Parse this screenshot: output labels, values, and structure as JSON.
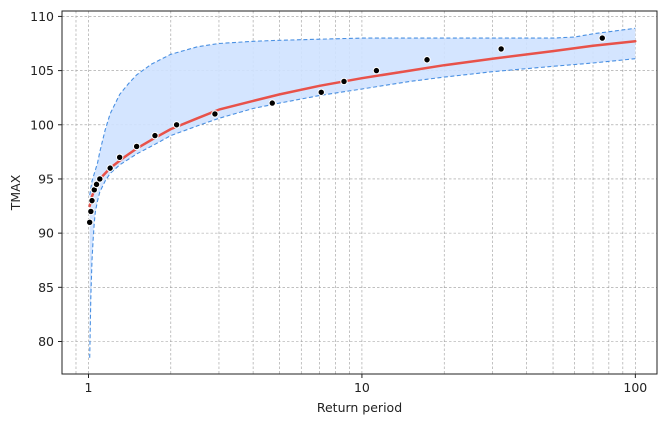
{
  "chart_data": {
    "type": "line",
    "title": "",
    "xlabel": "Return period",
    "ylabel": "TMAX",
    "x_scale": "log",
    "xlim": [
      0.8,
      120
    ],
    "ylim": [
      77,
      110.5
    ],
    "x_ticks": [
      1,
      10,
      100
    ],
    "x_tick_labels": [
      "1",
      "10",
      "100"
    ],
    "y_ticks": [
      80,
      85,
      90,
      95,
      100,
      105,
      110
    ],
    "y_tick_labels": [
      "80",
      "85",
      "90",
      "95",
      "100",
      "105",
      "110"
    ],
    "grid": true,
    "legend": "none",
    "series": [
      {
        "kind": "fit",
        "x": [
          1.01,
          1.03,
          1.06,
          1.1,
          1.2,
          1.35,
          1.5,
          1.75,
          2,
          2.5,
          3,
          4,
          5,
          7,
          10,
          15,
          20,
          30,
          50,
          70,
          100
        ],
        "y": [
          92.5,
          93.4,
          94.2,
          95,
          96,
          97,
          97.8,
          98.8,
          99.6,
          100.6,
          101.4,
          102.2,
          102.8,
          103.6,
          104.3,
          105,
          105.5,
          106.1,
          106.8,
          107.3,
          107.7
        ]
      },
      {
        "kind": "ci_upper",
        "x": [
          1.01,
          1.03,
          1.05,
          1.08,
          1.1,
          1.15,
          1.2,
          1.3,
          1.4,
          1.5,
          1.7,
          2,
          2.5,
          3,
          4,
          5,
          7,
          10,
          20,
          50,
          60,
          70,
          100
        ],
        "y": [
          93.5,
          94.8,
          95.5,
          96.5,
          97.5,
          99.5,
          101,
          102.8,
          103.8,
          104.6,
          105.6,
          106.5,
          107.2,
          107.5,
          107.7,
          107.8,
          107.9,
          108,
          108,
          108,
          108.1,
          108.4,
          108.9
        ]
      },
      {
        "kind": "ci_lower",
        "x": [
          1.01,
          1.02,
          1.03,
          1.04,
          1.05,
          1.06,
          1.08,
          1.1,
          1.15,
          1.2,
          1.3,
          1.5,
          1.75,
          2,
          2.5,
          3,
          4,
          5,
          7,
          10,
          15,
          20,
          30,
          50,
          70,
          100
        ],
        "y": [
          78.5,
          84,
          87.5,
          89.5,
          91,
          92,
          93,
          93.8,
          94.8,
          95.5,
          96.3,
          97.3,
          98.2,
          99,
          99.9,
          100.6,
          101.5,
          102,
          102.7,
          103.3,
          104,
          104.4,
          104.9,
          105.4,
          105.7,
          106.1
        ]
      },
      {
        "kind": "observed",
        "x": [
          1.01,
          1.02,
          1.03,
          1.05,
          1.07,
          1.1,
          1.2,
          1.3,
          1.5,
          1.75,
          2.1,
          2.9,
          4.7,
          7.1,
          8.6,
          11.3,
          17.3,
          32.3,
          75.7
        ],
        "y": [
          91,
          92,
          93,
          94,
          94.5,
          95,
          96,
          97,
          98,
          99,
          100,
          101,
          102,
          103,
          104,
          105,
          106,
          107,
          108
        ]
      }
    ],
    "colors": {
      "fit": "#e8524a",
      "ci_line": "#4a90e2",
      "ci_fill": "#cfe2ff",
      "observed": "#000000",
      "grid": "#9a9a9a"
    }
  }
}
